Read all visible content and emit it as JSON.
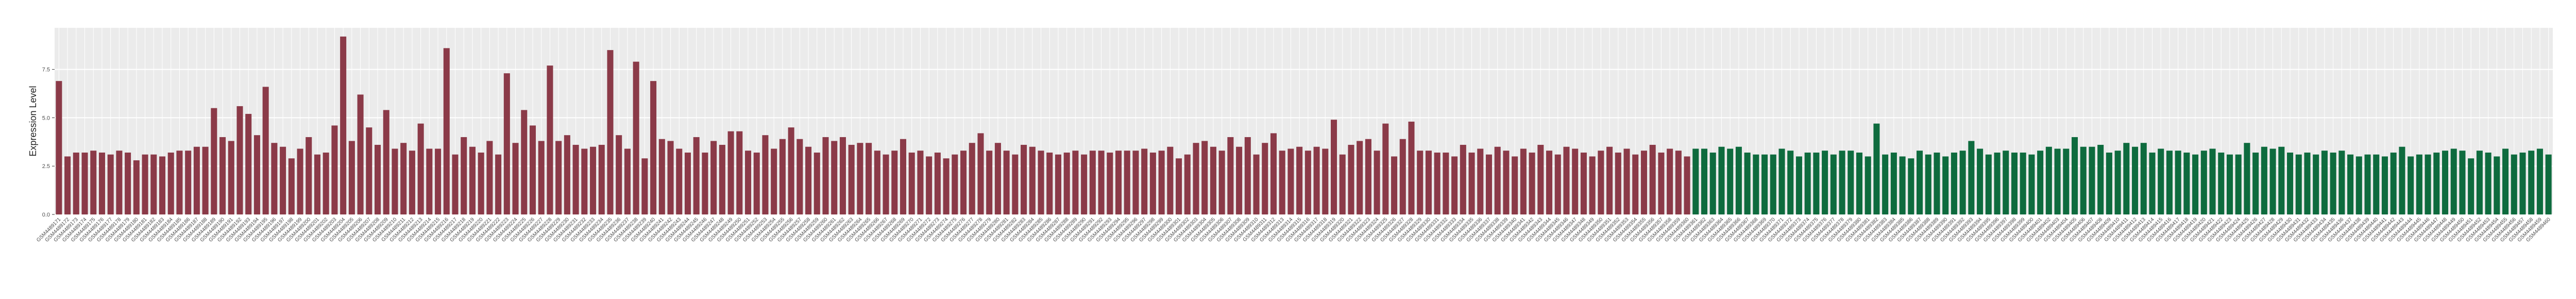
{
  "chart_data": {
    "type": "bar",
    "y_label": "Expression Level",
    "ylim": [
      0,
      9.65
    ],
    "yticks": [
      {
        "value": 0,
        "label": "0.0"
      },
      {
        "value": 2.5,
        "label": "2.5"
      },
      {
        "value": 5,
        "label": "5.0"
      },
      {
        "value": 7.5,
        "label": "7.5"
      }
    ],
    "grid": true,
    "series": [
      {
        "color": "#8b3a48",
        "categories": [
          "GSM4489171",
          "GSM4489172",
          "GSM4489173",
          "GSM4489174",
          "GSM4489175",
          "GSM4489176",
          "GSM4489177",
          "GSM4489178",
          "GSM4489179",
          "GSM4489180",
          "GSM4489181",
          "GSM4489182",
          "GSM4489183",
          "GSM4489184",
          "GSM4489185",
          "GSM4489186",
          "GSM4489187",
          "GSM4489188",
          "GSM4489189",
          "GSM4489190",
          "GSM4489191",
          "GSM4489192",
          "GSM4489193",
          "GSM4489194",
          "GSM4489195",
          "GSM4489196",
          "GSM4489197",
          "GSM4489198",
          "GSM4489199",
          "GSM4489200",
          "GSM4489201",
          "GSM4489202",
          "GSM4489203",
          "GSM4489204",
          "GSM4489205",
          "GSM4489206",
          "GSM4489207",
          "GSM4489208",
          "GSM4489209",
          "GSM4489210",
          "GSM4489211",
          "GSM4489212",
          "GSM4489213",
          "GSM4489214",
          "GSM4489215",
          "GSM4489216",
          "GSM4489217",
          "GSM4489218",
          "GSM4489219",
          "GSM4489220",
          "GSM4489221",
          "GSM4489222",
          "GSM4489223",
          "GSM4489224",
          "GSM4489225",
          "GSM4489226",
          "GSM4489227",
          "GSM4489228",
          "GSM4489229",
          "GSM4489230",
          "GSM4489231",
          "GSM4489232",
          "GSM4489233",
          "GSM4489234",
          "GSM4489235",
          "GSM4489236",
          "GSM4489237",
          "GSM4489238",
          "GSM4489239",
          "GSM4489240",
          "GSM4489241",
          "GSM4489242",
          "GSM4489243",
          "GSM4489244",
          "GSM4489245",
          "GSM4489246",
          "GSM4489247",
          "GSM4489248",
          "GSM4489249",
          "GSM4489250",
          "GSM4489251",
          "GSM4489252",
          "GSM4489253",
          "GSM4489254",
          "GSM4489255",
          "GSM4489256",
          "GSM4489257",
          "GSM4489258",
          "GSM4489259",
          "GSM4489260",
          "GSM4489261",
          "GSM4489262",
          "GSM4489263",
          "GSM4489264",
          "GSM4489265",
          "GSM4489266",
          "GSM4489267",
          "GSM4489268",
          "GSM4489269",
          "GSM4489270",
          "GSM4489271",
          "GSM4489272",
          "GSM4489273",
          "GSM4489274",
          "GSM4489275",
          "GSM4489276",
          "GSM4489277",
          "GSM4489278",
          "GSM4489279",
          "GSM4489280",
          "GSM4489281",
          "GSM4489282",
          "GSM4489283",
          "GSM4489284",
          "GSM4489285",
          "GSM4489286",
          "GSM4489287",
          "GSM4489288",
          "GSM4489289",
          "GSM4489290",
          "GSM4489291",
          "GSM4489292",
          "GSM4489293",
          "GSM4489294",
          "GSM4489295",
          "GSM4489296",
          "GSM4489297",
          "GSM4489298",
          "GSM4489299",
          "GSM4489300",
          "GSM4489301",
          "GSM4489302",
          "GSM4489303",
          "GSM4489304",
          "GSM4489305",
          "GSM4489306",
          "GSM4489307",
          "GSM4489308",
          "GSM4489309",
          "GSM4489310",
          "GSM4489311",
          "GSM4489312",
          "GSM4489313",
          "GSM4489314",
          "GSM4489315",
          "GSM4489316",
          "GSM4489317",
          "GSM4489318",
          "GSM4489319",
          "GSM4489320",
          "GSM4489321",
          "GSM4489322",
          "GSM4489323",
          "GSM4489324",
          "GSM4489325",
          "GSM4489326",
          "GSM4489327",
          "GSM4489328",
          "GSM4489329",
          "GSM4489330",
          "GSM4489331",
          "GSM4489332",
          "GSM4489333",
          "GSM4489334",
          "GSM4489335",
          "GSM4489336",
          "GSM4489337",
          "GSM4489338",
          "GSM4489339",
          "GSM4489340",
          "GSM4489341",
          "GSM4489342",
          "GSM4489343",
          "GSM4489344",
          "GSM4489345",
          "GSM4489346",
          "GSM4489347",
          "GSM4489348",
          "GSM4489349",
          "GSM4489350",
          "GSM4489351",
          "GSM4489352",
          "GSM4489353",
          "GSM4489354",
          "GSM4489355",
          "GSM4489356",
          "GSM4489357",
          "GSM4489358",
          "GSM4489359",
          "GSM4489360"
        ],
        "values": [
          6.9,
          3.0,
          3.2,
          3.2,
          3.3,
          3.2,
          3.1,
          3.3,
          3.2,
          2.8,
          3.1,
          3.1,
          3.0,
          3.2,
          3.3,
          3.3,
          3.5,
          3.5,
          5.5,
          4.0,
          3.8,
          5.6,
          5.2,
          4.1,
          6.6,
          3.7,
          3.5,
          2.9,
          3.4,
          4.0,
          3.1,
          3.2,
          4.6,
          9.2,
          3.8,
          6.2,
          4.5,
          3.6,
          5.4,
          3.4,
          3.7,
          3.3,
          4.7,
          3.4,
          3.4,
          8.6,
          3.1,
          4.0,
          3.5,
          3.2,
          3.8,
          3.1,
          7.3,
          3.7,
          5.4,
          4.6,
          3.8,
          7.7,
          3.8,
          4.1,
          3.6,
          3.4,
          3.5,
          3.6,
          8.5,
          4.1,
          3.4,
          7.9,
          2.9,
          6.9,
          3.9,
          3.8,
          3.4,
          3.2,
          4.0,
          3.2,
          3.8,
          3.6,
          4.3,
          4.3,
          3.3,
          3.2,
          4.1,
          3.4,
          3.9,
          4.5,
          3.9,
          3.5,
          3.2,
          4.0,
          3.8,
          4.0,
          3.6,
          3.7,
          3.7,
          3.3,
          3.1,
          3.3,
          3.9,
          3.2,
          3.3,
          3.0,
          3.2,
          2.9,
          3.1,
          3.3,
          3.7,
          4.2,
          3.3,
          3.7,
          3.3,
          3.1,
          3.6,
          3.5,
          3.3,
          3.2,
          3.1,
          3.2,
          3.3,
          3.1,
          3.3,
          3.3,
          3.2,
          3.3,
          3.3,
          3.3,
          3.4,
          3.2,
          3.3,
          3.5,
          2.9,
          3.1,
          3.7,
          3.8,
          3.5,
          3.3,
          4.0,
          3.5,
          4.0,
          3.1,
          3.7,
          4.2,
          3.3,
          3.4,
          3.5,
          3.3,
          3.5,
          3.4,
          4.9,
          3.1,
          3.6,
          3.8,
          3.9,
          3.3,
          4.7,
          3.0,
          3.9,
          4.8,
          3.3,
          3.3,
          3.2,
          3.2,
          3.0,
          3.6,
          3.2,
          3.4,
          3.1,
          3.5,
          3.3,
          3.0,
          3.4,
          3.2,
          3.6,
          3.3,
          3.1,
          3.5,
          3.4,
          3.2,
          3.0,
          3.3,
          3.5,
          3.2,
          3.4,
          3.1,
          3.3,
          3.6,
          3.2,
          3.4,
          3.3,
          3.0
        ]
      },
      {
        "color": "#0e6b3e",
        "categories": [
          "GSM4489361",
          "GSM4489362",
          "GSM4489363",
          "GSM4489364",
          "GSM4489365",
          "GSM4489366",
          "GSM4489367",
          "GSM4489368",
          "GSM4489369",
          "GSM4489370",
          "GSM4489371",
          "GSM4489372",
          "GSM4489373",
          "GSM4489374",
          "GSM4489375",
          "GSM4489376",
          "GSM4489377",
          "GSM4489378",
          "GSM4489379",
          "GSM4489380",
          "GSM4489381",
          "GSM4489382",
          "GSM4489383",
          "GSM4489384",
          "GSM4489385",
          "GSM4489386",
          "GSM4489387",
          "GSM4489388",
          "GSM4489389",
          "GSM4489390",
          "GSM4489391",
          "GSM4489392",
          "GSM4489393",
          "GSM4489394",
          "GSM4489395",
          "GSM4489396",
          "GSM4489397",
          "GSM4489398",
          "GSM4489399",
          "GSM4489400",
          "GSM4489401",
          "GSM4489402",
          "GSM4489403",
          "GSM4489404",
          "GSM4489405",
          "GSM4489406",
          "GSM4489407",
          "GSM4489408",
          "GSM4489409",
          "GSM4489410",
          "GSM4489411",
          "GSM4489412",
          "GSM4489413",
          "GSM4489414",
          "GSM4489415",
          "GSM4489416",
          "GSM4489417",
          "GSM4489418",
          "GSM4489419",
          "GSM4489420",
          "GSM4489421",
          "GSM4489422",
          "GSM4489423",
          "GSM4489424",
          "GSM4489425",
          "GSM4489426",
          "GSM4489427",
          "GSM4489428",
          "GSM4489429",
          "GSM4489430",
          "GSM4489431",
          "GSM4489432",
          "GSM4489433",
          "GSM4489434",
          "GSM4489435",
          "GSM4489436",
          "GSM4489437",
          "GSM4489438",
          "GSM4489439",
          "GSM4489440",
          "GSM4489441",
          "GSM4489442",
          "GSM4489443",
          "GSM4489444",
          "GSM4489445",
          "GSM4489446",
          "GSM4489447",
          "GSM4489448",
          "GSM4489449",
          "GSM4489450",
          "GSM4489451",
          "GSM4489452",
          "GSM4489453",
          "GSM4489454",
          "GSM4489455",
          "GSM4489456",
          "GSM4489457",
          "GSM4489458",
          "GSM4489459",
          "GSM4489460"
        ],
        "values": [
          3.4,
          3.4,
          3.2,
          3.5,
          3.4,
          3.5,
          3.2,
          3.1,
          3.1,
          3.1,
          3.4,
          3.3,
          3.0,
          3.2,
          3.2,
          3.3,
          3.1,
          3.3,
          3.3,
          3.2,
          3.0,
          4.7,
          3.1,
          3.2,
          3.0,
          2.9,
          3.3,
          3.1,
          3.2,
          3.0,
          3.2,
          3.3,
          3.8,
          3.4,
          3.1,
          3.2,
          3.3,
          3.2,
          3.2,
          3.1,
          3.3,
          3.5,
          3.4,
          3.4,
          4.0,
          3.5,
          3.5,
          3.6,
          3.2,
          3.3,
          3.7,
          3.5,
          3.7,
          3.2,
          3.4,
          3.3,
          3.3,
          3.2,
          3.1,
          3.3,
          3.4,
          3.2,
          3.1,
          3.1,
          3.7,
          3.2,
          3.5,
          3.4,
          3.5,
          3.2,
          3.1,
          3.2,
          3.1,
          3.3,
          3.2,
          3.3,
          3.1,
          3.0,
          3.1,
          3.1,
          3.0,
          3.2,
          3.5,
          3.0,
          3.1,
          3.1,
          3.2,
          3.3,
          3.4,
          3.3,
          2.9,
          3.3,
          3.2,
          3.0,
          3.4,
          3.1,
          3.2,
          3.3,
          3.4,
          3.1
        ]
      }
    ]
  }
}
